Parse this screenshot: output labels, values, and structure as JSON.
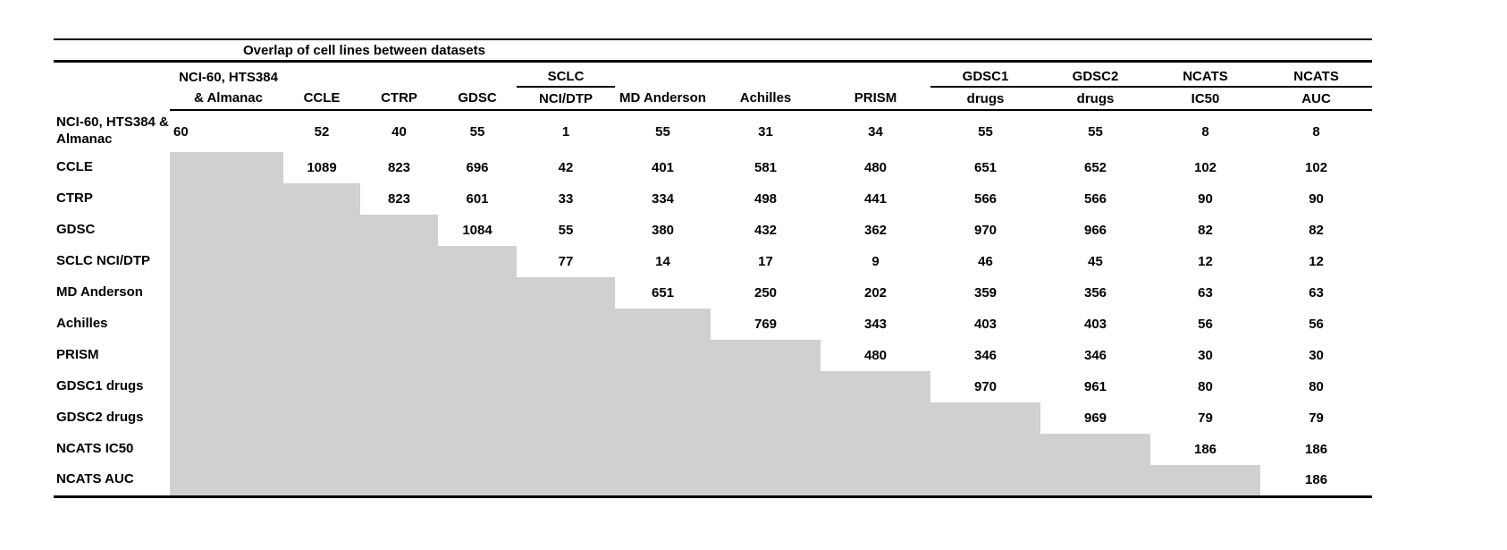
{
  "title": "Overlap of cell lines between datasets",
  "colors": {
    "shaded_cell": "#d0d0d0",
    "rule": "#000000",
    "background": "#ffffff",
    "text": "#000000"
  },
  "table": {
    "header_top": [
      "",
      "NCI-60, HTS384",
      "",
      "",
      "",
      "SCLC",
      "",
      "",
      "",
      "GDSC1",
      "GDSC2",
      "NCATS",
      "NCATS"
    ],
    "header_bottom": [
      "",
      "& Almanac",
      "CCLE",
      "CTRP",
      "GDSC",
      "NCI/DTP",
      "MD Anderson",
      "Achilles",
      "PRISM",
      "drugs",
      "drugs",
      "IC50",
      "AUC"
    ],
    "row_labels": [
      "NCI-60, HTS384 & Almanac",
      "CCLE",
      "CTRP",
      "GDSC",
      "SCLC NCI/DTP",
      "MD Anderson",
      "Achilles",
      "PRISM",
      "GDSC1 drugs",
      "GDSC2 drugs",
      "NCATS IC50",
      "NCATS AUC"
    ],
    "values": [
      [
        60,
        52,
        40,
        55,
        1,
        55,
        31,
        34,
        55,
        55,
        8,
        8
      ],
      [
        null,
        1089,
        823,
        696,
        42,
        401,
        581,
        480,
        651,
        652,
        102,
        102
      ],
      [
        null,
        null,
        823,
        601,
        33,
        334,
        498,
        441,
        566,
        566,
        90,
        90
      ],
      [
        null,
        null,
        null,
        1084,
        55,
        380,
        432,
        362,
        970,
        966,
        82,
        82
      ],
      [
        null,
        null,
        null,
        null,
        77,
        14,
        17,
        9,
        46,
        45,
        12,
        12
      ],
      [
        null,
        null,
        null,
        null,
        null,
        651,
        250,
        202,
        359,
        356,
        63,
        63
      ],
      [
        null,
        null,
        null,
        null,
        null,
        null,
        769,
        343,
        403,
        403,
        56,
        56
      ],
      [
        null,
        null,
        null,
        null,
        null,
        null,
        null,
        480,
        346,
        346,
        30,
        30
      ],
      [
        null,
        null,
        null,
        null,
        null,
        null,
        null,
        null,
        970,
        961,
        80,
        80
      ],
      [
        null,
        null,
        null,
        null,
        null,
        null,
        null,
        null,
        null,
        969,
        79,
        79
      ],
      [
        null,
        null,
        null,
        null,
        null,
        null,
        null,
        null,
        null,
        null,
        186,
        186
      ],
      [
        null,
        null,
        null,
        null,
        null,
        null,
        null,
        null,
        null,
        null,
        null,
        186
      ]
    ]
  }
}
